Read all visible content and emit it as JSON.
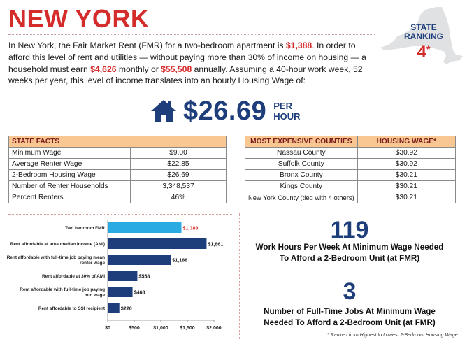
{
  "page": {
    "title": "NEW YORK",
    "intro": {
      "p1": "In New York, the Fair Market Rent (FMR) for a two-bedroom apartment is ",
      "fmr": "$1,388",
      "p2": ". In order to afford this level of rent and utilities — without paying more than 30% of income on housing — a household must earn ",
      "monthly": "$4,626",
      "p3": " monthly or ",
      "annual": "$55,508",
      "p4": " annually. Assuming a 40-hour work week, 52 weeks per year, this level of income translates into an hourly Housing Wage of:"
    },
    "ranking": {
      "label_line1": "STATE",
      "label_line2": "RANKING",
      "value": "4",
      "mark": "*"
    },
    "housing_wage": {
      "amount": "$26.69",
      "unit_line1": "PER",
      "unit_line2": "HOUR"
    },
    "colors": {
      "red": "#d42b2b",
      "navy": "#1e3d7b",
      "header_fill": "#f9c792",
      "bar_light": "#29abe2",
      "bar_dark": "#1e3d7b"
    },
    "state_facts": {
      "header": "STATE FACTS",
      "rows": [
        {
          "label": "Minimum Wage",
          "value": "$9.00"
        },
        {
          "label": "Average Renter Wage",
          "value": "$22.85"
        },
        {
          "label": "2-Bedroom Housing Wage",
          "value": "$26.69"
        },
        {
          "label": "Number of Renter Households",
          "value": "3,348,537"
        },
        {
          "label": "Percent Renters",
          "value": "46%"
        }
      ]
    },
    "counties": {
      "header_county": "MOST EXPENSIVE COUNTIES",
      "header_wage": "HOUSING WAGE*",
      "rows": [
        {
          "county": "Nassau County",
          "wage": "$30.92"
        },
        {
          "county": "Suffolk County",
          "wage": "$30.92"
        },
        {
          "county": "Bronx County",
          "wage": "$30.21"
        },
        {
          "county": "Kings County",
          "wage": "$30.21"
        },
        {
          "county": "New York County (tied with 4 others)",
          "wage": "$30.21"
        }
      ]
    },
    "stats": {
      "hours": "119",
      "hours_caption_line1": "Work Hours Per Week At Minimum Wage Needed",
      "hours_caption_line2": "To Afford a 2-Bedroom Unit (at FMR)",
      "jobs": "3",
      "jobs_caption_line1": "Number of Full-Time Jobs At Minimum Wage",
      "jobs_caption_line2": "Needed To Afford a 2-Bedroom Unit (at FMR)",
      "footnote": "* Ranked from Highest to Lowest 2-Bedroom Housing Wage"
    }
  },
  "chart_data": {
    "type": "bar",
    "orientation": "horizontal",
    "title": "",
    "categories": [
      [
        "Two bedroom FMR"
      ],
      [
        "Rent affordable at area median income (AMI)"
      ],
      [
        "Rent affordable with full-time job paying mean",
        "renter wage"
      ],
      [
        "Rent affordable at 30% of AMI"
      ],
      [
        "Rent affordable with full-time job paying",
        "min wage"
      ],
      [
        "Rent affordable to SSI recipient"
      ]
    ],
    "values": [
      1388,
      1861,
      1188,
      558,
      468,
      220
    ],
    "value_labels": [
      "$1,388",
      "$1,861",
      "$1,188",
      "$558",
      "$468",
      "$220"
    ],
    "highlight_index": 0,
    "xlim": [
      0,
      2000
    ],
    "xticks": [
      0,
      500,
      1000,
      1500,
      2000
    ],
    "xtick_labels": [
      "$0",
      "$500",
      "$1,000",
      "$1,500",
      "$2,000"
    ],
    "grid": false
  }
}
